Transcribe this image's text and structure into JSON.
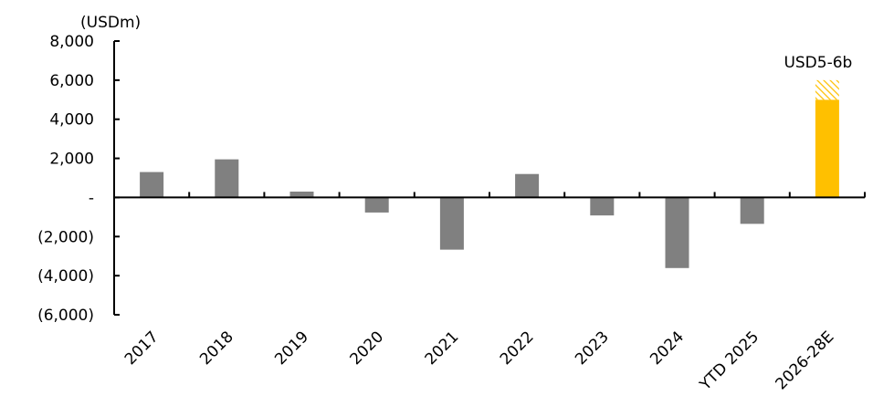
{
  "chart_data": {
    "type": "bar",
    "unit_label": "(USDm)",
    "categories": [
      "2017",
      "2018",
      "2019",
      "2020",
      "2021",
      "2022",
      "2023",
      "2024",
      "YTD 2025",
      "2026-28E"
    ],
    "values": [
      1300,
      1950,
      300,
      -770,
      -2670,
      1200,
      -920,
      -3610,
      -1350,
      5000
    ],
    "estimate_range": {
      "category": "2026-28E",
      "low": 5000,
      "high": 6000,
      "label": "USD5-6b"
    },
    "ylim": [
      -6000,
      8000
    ],
    "yticks": [
      8000,
      6000,
      4000,
      2000,
      0,
      -2000,
      -4000,
      -6000
    ],
    "ytick_labels": [
      "8,000",
      "6,000",
      "4,000",
      "2,000",
      "-",
      "(2,000)",
      "(4,000)",
      "(6,000)"
    ],
    "grid": false,
    "legend": "none",
    "colors": {
      "actual": "#808080",
      "estimate": "#FFC000",
      "axis": "#000000"
    }
  }
}
